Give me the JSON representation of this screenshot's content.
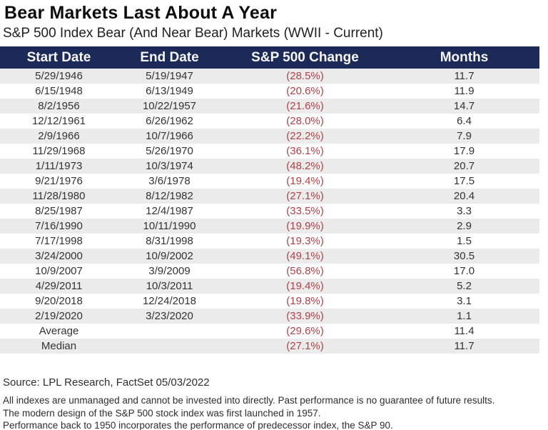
{
  "title": "Bear Markets Last About A Year",
  "subtitle": "S&P 500 Index Bear (And Near Bear) Markets (WWII - Current)",
  "colors": {
    "header_bg": "#1b2a57",
    "header_text": "#f6f6f6",
    "alt_row_bg": "#ebebeb",
    "negative_value": "#b04249",
    "divider": "#5f6f8d"
  },
  "chart_data": {
    "type": "table",
    "columns": [
      "Start Date",
      "End Date",
      "S&P 500 Change",
      "Months"
    ],
    "rows": [
      [
        "5/29/1946",
        "5/19/1947",
        "(28.5%)",
        "11.7"
      ],
      [
        "6/15/1948",
        "6/13/1949",
        "(20.6%)",
        "11.9"
      ],
      [
        "8/2/1956",
        "10/22/1957",
        "(21.6%)",
        "14.7"
      ],
      [
        "12/12/1961",
        "6/26/1962",
        "(28.0%)",
        "6.4"
      ],
      [
        "2/9/1966",
        "10/7/1966",
        "(22.2%)",
        "7.9"
      ],
      [
        "11/29/1968",
        "5/26/1970",
        "(36.1%)",
        "17.9"
      ],
      [
        "1/11/1973",
        "10/3/1974",
        "(48.2%)",
        "20.7"
      ],
      [
        "9/21/1976",
        "3/6/1978",
        "(19.4%)",
        "17.5"
      ],
      [
        "11/28/1980",
        "8/12/1982",
        "(27.1%)",
        "20.4"
      ],
      [
        "8/25/1987",
        "12/4/1987",
        "(33.5%)",
        "3.3"
      ],
      [
        "7/16/1990",
        "10/11/1990",
        "(19.9%)",
        "2.9"
      ],
      [
        "7/17/1998",
        "8/31/1998",
        "(19.3%)",
        "1.5"
      ],
      [
        "3/24/2000",
        "10/9/2002",
        "(49.1%)",
        "30.5"
      ],
      [
        "10/9/2007",
        "3/9/2009",
        "(56.8%)",
        "17.0"
      ],
      [
        "4/29/2011",
        "10/3/2011",
        "(19.4%)",
        "5.2"
      ],
      [
        "9/20/2018",
        "12/24/2018",
        "(19.8%)",
        "3.1"
      ],
      [
        "2/19/2020",
        "3/23/2020",
        "(33.9%)",
        "1.1"
      ]
    ],
    "summary_rows": [
      [
        "Average",
        "",
        "(29.6%)",
        "11.4"
      ],
      [
        "Median",
        "",
        "(27.1%)",
        "11.7"
      ]
    ]
  },
  "footer": {
    "source": "Source: LPL Research, FactSet 05/03/2022",
    "disclaimers": [
      "All indexes are unmanaged and cannot be invested into directly. Past performance is no guarantee of future results.",
      "The modern design of the S&P 500 stock index was first launched in 1957.",
      "Performance back to 1950 incorporates the performance of predecessor index, the S&P 90."
    ]
  }
}
